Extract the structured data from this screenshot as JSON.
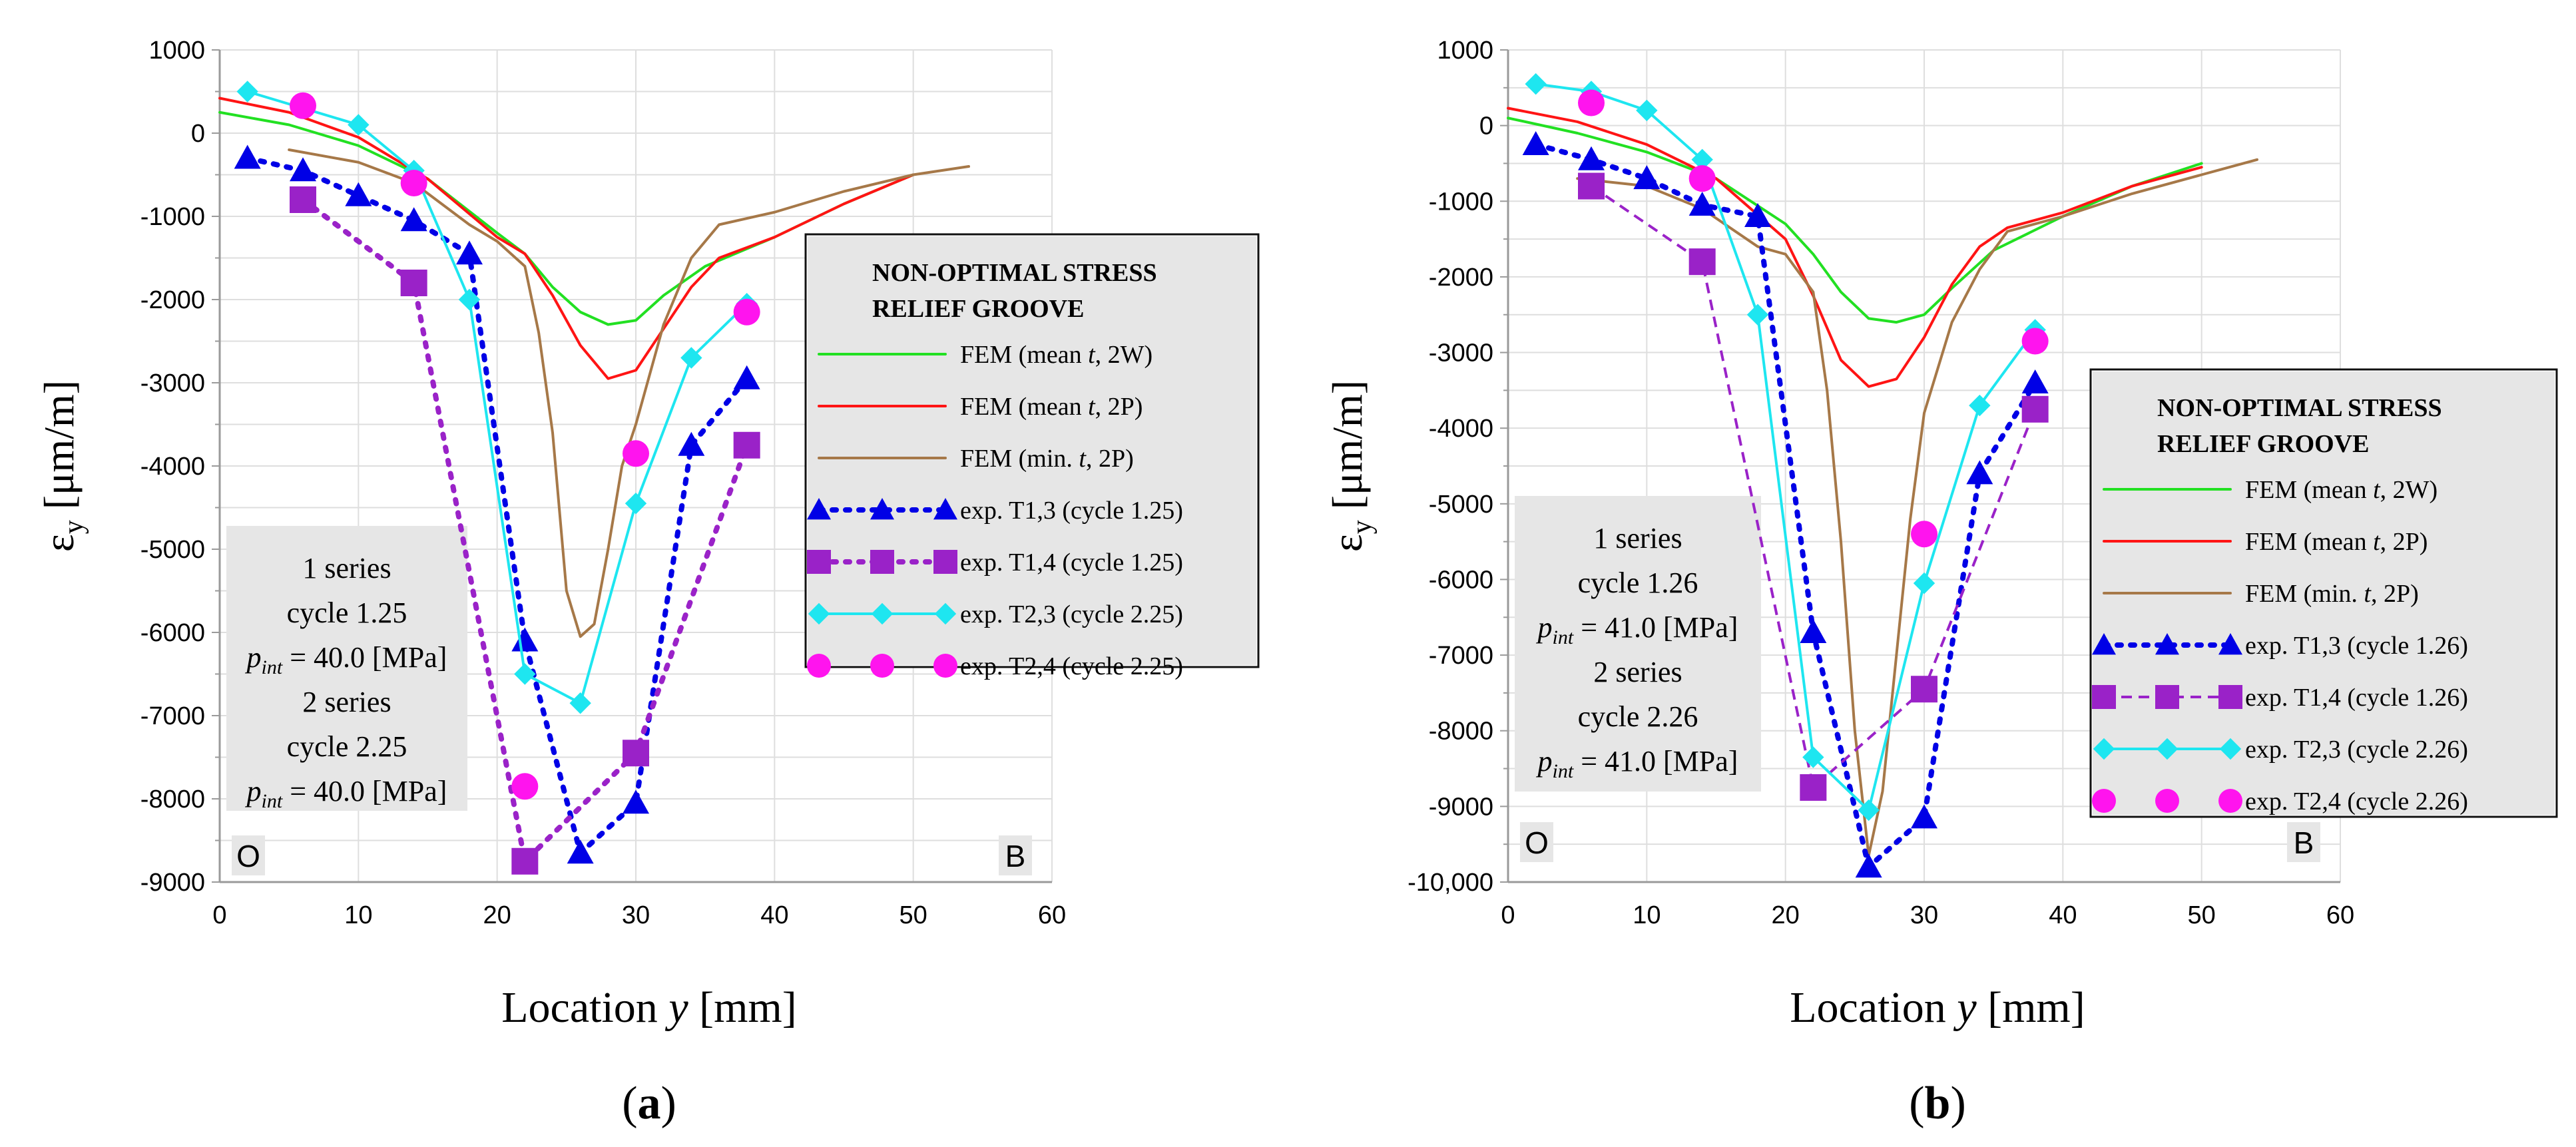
{
  "chart_data": [
    {
      "type": "line",
      "panel_label": {
        "open": "(",
        "letter": "a",
        "close": ")"
      },
      "xlabel": {
        "prefix": "Location ",
        "var": "y",
        "suffix": " [mm]"
      },
      "ylabel": {
        "main": "ε",
        "sub": "y",
        "unit": " [μm/m]"
      },
      "xlim": [
        0,
        60
      ],
      "ylim": [
        -9000,
        1000
      ],
      "xticks": [
        "0",
        "10",
        "20",
        "30",
        "40",
        "50",
        "60"
      ],
      "yticks": [
        "1000",
        "0",
        "-1000",
        "-2000",
        "-3000",
        "-4000",
        "-5000",
        "-6000",
        "-7000",
        "-8000",
        "-9000"
      ],
      "ytick_values": [
        1000,
        0,
        -1000,
        -2000,
        -3000,
        -4000,
        -5000,
        -6000,
        -7000,
        -8000,
        -9000
      ],
      "corner_left": "O",
      "corner_right": "B",
      "legend": {
        "title_line1": "NON-OPTIMAL STRESS",
        "title_line2": "RELIEF GROOVE",
        "placement": "center-right"
      },
      "info_box": {
        "line1": "1 series",
        "line2": "cycle 1.25",
        "p1_var": "p",
        "p1_sub": "int",
        "p1_val": " = 40.0 [MPa]",
        "line4": "2 series",
        "line5": "cycle 2.25",
        "p2_var": "p",
        "p2_sub": "int",
        "p2_val": " = 40.0 [MPa]"
      },
      "series": [
        {
          "name_pre": "FEM (mean ",
          "name_var": "t",
          "name_post": ", 2W)",
          "color": "#22e022",
          "style": "line",
          "x": [
            0,
            5,
            10,
            15,
            20,
            22,
            24,
            26,
            28,
            30,
            32,
            35,
            40,
            45,
            50
          ],
          "y": [
            250,
            100,
            -150,
            -550,
            -1200,
            -1450,
            -1850,
            -2150,
            -2300,
            -2250,
            -1950,
            -1600,
            -1250,
            -850,
            -500
          ]
        },
        {
          "name_pre": "FEM (mean ",
          "name_var": "t",
          "name_post": ", 2P)",
          "color": "#ff1414",
          "style": "line",
          "x": [
            0,
            5,
            10,
            15,
            20,
            22,
            24,
            26,
            28,
            30,
            32,
            34,
            36,
            40,
            45,
            50
          ],
          "y": [
            420,
            250,
            -50,
            -550,
            -1250,
            -1450,
            -1950,
            -2550,
            -2950,
            -2850,
            -2350,
            -1850,
            -1500,
            -1250,
            -850,
            -500
          ]
        },
        {
          "name_pre": "FEM (min. ",
          "name_var": "t",
          "name_post": ", 2P)",
          "color": "#a67848",
          "style": "line",
          "x": [
            5,
            10,
            14,
            18,
            20,
            22,
            23,
            24,
            25,
            26,
            27,
            28,
            29,
            30,
            32,
            34,
            36,
            40,
            45,
            50,
            54
          ],
          "y": [
            -200,
            -350,
            -600,
            -1100,
            -1300,
            -1600,
            -2400,
            -3600,
            -5500,
            -6050,
            -5900,
            -5000,
            -4000,
            -3500,
            -2300,
            -1500,
            -1100,
            -950,
            -700,
            -500,
            -400
          ]
        },
        {
          "name_pre": "exp. T1,3 (cycle 1.25)",
          "name_var": "",
          "name_post": "",
          "color": "#0000e6",
          "style": "dotted-triangle",
          "x": [
            2,
            6,
            10,
            14,
            18,
            22,
            26,
            30,
            34,
            38
          ],
          "y": [
            -300,
            -450,
            -750,
            -1050,
            -1450,
            -6100,
            -8650,
            -8050,
            -3750,
            -2950
          ]
        },
        {
          "name_pre": "exp. T1,4 (cycle 1.25)",
          "name_var": "",
          "name_post": "",
          "color": "#9a22c8",
          "style": "dotted-square",
          "x": [
            6,
            14,
            22,
            30,
            38
          ],
          "y": [
            -800,
            -1800,
            -8750,
            -7450,
            -3750
          ]
        },
        {
          "name_pre": "exp. T2,3 (cycle 2.25)",
          "name_var": "",
          "name_post": "",
          "color": "#1ee6f0",
          "style": "line-diamond",
          "x": [
            2,
            6,
            10,
            14,
            18,
            22,
            26,
            30,
            34,
            38
          ],
          "y": [
            500,
            300,
            100,
            -450,
            -2000,
            -6500,
            -6850,
            -4450,
            -2700,
            -2050
          ]
        },
        {
          "name_pre": "exp. T2,4 (cycle 2.25)",
          "name_var": "",
          "name_post": "",
          "color": "#ff14ee",
          "style": "circle",
          "x": [
            6,
            14,
            22,
            30,
            38
          ],
          "y": [
            330,
            -600,
            -7850,
            -3850,
            -2150
          ]
        }
      ]
    },
    {
      "type": "line",
      "panel_label": {
        "open": "(",
        "letter": "b",
        "close": ")"
      },
      "xlabel": {
        "prefix": "Location ",
        "var": "y",
        "suffix": " [mm]"
      },
      "ylabel": {
        "main": "ε",
        "sub": "y",
        "unit": " [μm/m]"
      },
      "xlim": [
        0,
        60
      ],
      "ylim": [
        -10000,
        1000
      ],
      "xticks": [
        "0",
        "10",
        "20",
        "30",
        "40",
        "50",
        "60"
      ],
      "yticks": [
        "1000",
        "0",
        "-1000",
        "-2000",
        "-3000",
        "-4000",
        "-5000",
        "-6000",
        "-7000",
        "-8000",
        "-9000",
        "-10,000"
      ],
      "ytick_values": [
        1000,
        0,
        -1000,
        -2000,
        -3000,
        -4000,
        -5000,
        -6000,
        -7000,
        -8000,
        -9000,
        -10000
      ],
      "corner_left": "O",
      "corner_right": "B",
      "legend": {
        "title_line1": "NON-OPTIMAL STRESS",
        "title_line2": "RELIEF GROOVE",
        "placement": "lower-right"
      },
      "info_box": {
        "line1": "1 series",
        "line2": "cycle 1.26",
        "p1_var": "p",
        "p1_sub": "int",
        "p1_val": " = 41.0 [MPa]",
        "line4": "2 series",
        "line5": "cycle 2.26",
        "p2_var": "p",
        "p2_sub": "int",
        "p2_val": " = 41.0 [MPa]"
      },
      "series": [
        {
          "name_pre": "FEM (mean ",
          "name_var": "t",
          "name_post": ", 2W)",
          "color": "#22e022",
          "style": "line",
          "x": [
            0,
            5,
            10,
            15,
            20,
            22,
            24,
            26,
            28,
            30,
            32,
            35,
            40,
            45,
            50
          ],
          "y": [
            100,
            -100,
            -350,
            -700,
            -1300,
            -1700,
            -2200,
            -2550,
            -2600,
            -2500,
            -2150,
            -1650,
            -1200,
            -800,
            -500
          ]
        },
        {
          "name_pre": "FEM (mean ",
          "name_var": "t",
          "name_post": ", 2P)",
          "color": "#ff1414",
          "style": "line",
          "x": [
            0,
            5,
            10,
            15,
            20,
            22,
            24,
            26,
            28,
            30,
            32,
            34,
            36,
            40,
            45,
            50
          ],
          "y": [
            230,
            50,
            -250,
            -700,
            -1500,
            -2250,
            -3100,
            -3450,
            -3350,
            -2800,
            -2100,
            -1600,
            -1350,
            -1150,
            -800,
            -550
          ]
        },
        {
          "name_pre": "FEM (min. ",
          "name_var": "t",
          "name_post": ", 2P)",
          "color": "#a67848",
          "style": "line",
          "x": [
            5,
            10,
            14,
            18,
            20,
            22,
            23,
            24,
            25,
            26,
            27,
            28,
            29,
            30,
            32,
            34,
            36,
            40,
            45,
            50,
            54
          ],
          "y": [
            -700,
            -800,
            -1100,
            -1600,
            -1700,
            -2200,
            -3500,
            -5500,
            -8000,
            -9650,
            -8800,
            -7000,
            -5200,
            -3800,
            -2600,
            -1900,
            -1400,
            -1200,
            -900,
            -650,
            -450
          ]
        },
        {
          "name_pre": "exp. T1,3 (cycle 1.26)",
          "name_var": "",
          "name_post": "",
          "color": "#0000e6",
          "style": "dotted-triangle",
          "x": [
            2,
            6,
            10,
            14,
            18,
            22,
            26,
            30,
            34,
            38
          ],
          "y": [
            -250,
            -450,
            -700,
            -1050,
            -1200,
            -6700,
            -9800,
            -9150,
            -4600,
            -3400
          ]
        },
        {
          "name_pre": "exp. T1,4 (cycle 1.26)",
          "name_var": "",
          "name_post": "",
          "color": "#9a22c8",
          "style": "dashed-square",
          "x": [
            6,
            14,
            22,
            30,
            38
          ],
          "y": [
            -800,
            -1800,
            -8750,
            -7450,
            -3750
          ]
        },
        {
          "name_pre": "exp. T2,3 (cycle 2.26)",
          "name_var": "",
          "name_post": "",
          "color": "#1ee6f0",
          "style": "line-diamond",
          "x": [
            2,
            6,
            10,
            14,
            18,
            22,
            26,
            30,
            34,
            38
          ],
          "y": [
            550,
            450,
            200,
            -450,
            -2500,
            -8350,
            -9050,
            -6050,
            -3700,
            -2700
          ]
        },
        {
          "name_pre": "exp. T2,4 (cycle 2.26)",
          "name_var": "",
          "name_post": "",
          "color": "#ff14ee",
          "style": "circle",
          "x": [
            6,
            14,
            30,
            38
          ],
          "y": [
            300,
            -700,
            -5400,
            -2850
          ]
        }
      ]
    }
  ]
}
